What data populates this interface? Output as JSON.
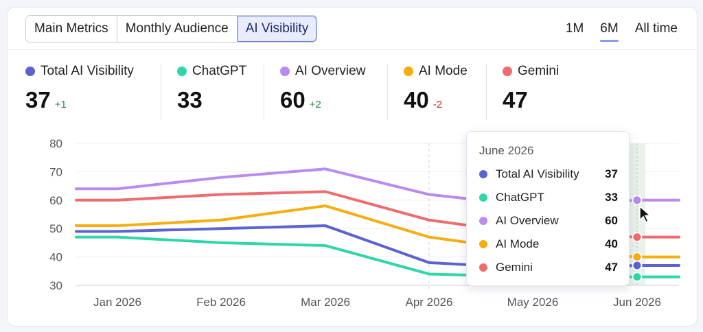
{
  "tabs": [
    {
      "label": "Main Metrics",
      "active": false
    },
    {
      "label": "Monthly Audience",
      "active": false
    },
    {
      "label": "AI Visibility",
      "active": true
    }
  ],
  "ranges": [
    {
      "label": "1M",
      "active": false
    },
    {
      "label": "6M",
      "active": true
    },
    {
      "label": "All time",
      "active": false
    }
  ],
  "metrics": [
    {
      "label": "Total AI Visibility",
      "value": "37",
      "delta": "+1",
      "color": "#5b63d3"
    },
    {
      "label": "ChatGPT",
      "value": "33",
      "delta": "",
      "color": "#2fd6a9"
    },
    {
      "label": "AI Overview",
      "value": "60",
      "delta": "+2",
      "color": "#b98bf0"
    },
    {
      "label": "AI Mode",
      "value": "40",
      "delta": "-2",
      "color": "#f5ad0f"
    },
    {
      "label": "Gemini",
      "value": "47",
      "delta": "",
      "color": "#ef6b6f"
    }
  ],
  "tooltip": {
    "title": "June 2026",
    "rows": [
      {
        "label": "Total AI Visibility",
        "value": "37",
        "color": "#5b63d3"
      },
      {
        "label": "ChatGPT",
        "value": "33",
        "color": "#2fd6a9"
      },
      {
        "label": "AI Overview",
        "value": "60",
        "color": "#b98bf0"
      },
      {
        "label": "AI Mode",
        "value": "40",
        "color": "#f5ad0f"
      },
      {
        "label": "Gemini",
        "value": "47",
        "color": "#ef6b6f"
      }
    ]
  },
  "chart_data": {
    "type": "line",
    "categories": [
      "Jan 2026",
      "Feb 2026",
      "Mar 2026",
      "Apr 2026",
      "May 2026",
      "Jun 2026"
    ],
    "ylim": [
      30,
      80
    ],
    "yticks": [
      80,
      70,
      60,
      50,
      40,
      30
    ],
    "grid": true,
    "series": [
      {
        "name": "AI Overview",
        "color": "#b98bf0",
        "values": [
          64,
          68,
          71,
          62,
          58,
          60
        ]
      },
      {
        "name": "Gemini",
        "color": "#ef6b6f",
        "values": [
          60,
          62,
          63,
          53,
          48,
          47
        ]
      },
      {
        "name": "AI Mode",
        "color": "#f5ad0f",
        "values": [
          51,
          53,
          58,
          47,
          42,
          40
        ]
      },
      {
        "name": "Total AI Visibility",
        "color": "#5b63d3",
        "values": [
          49,
          50,
          51,
          38,
          36,
          37
        ]
      },
      {
        "name": "ChatGPT",
        "color": "#2fd6a9",
        "values": [
          47,
          45,
          44,
          34,
          33,
          33
        ]
      }
    ]
  }
}
